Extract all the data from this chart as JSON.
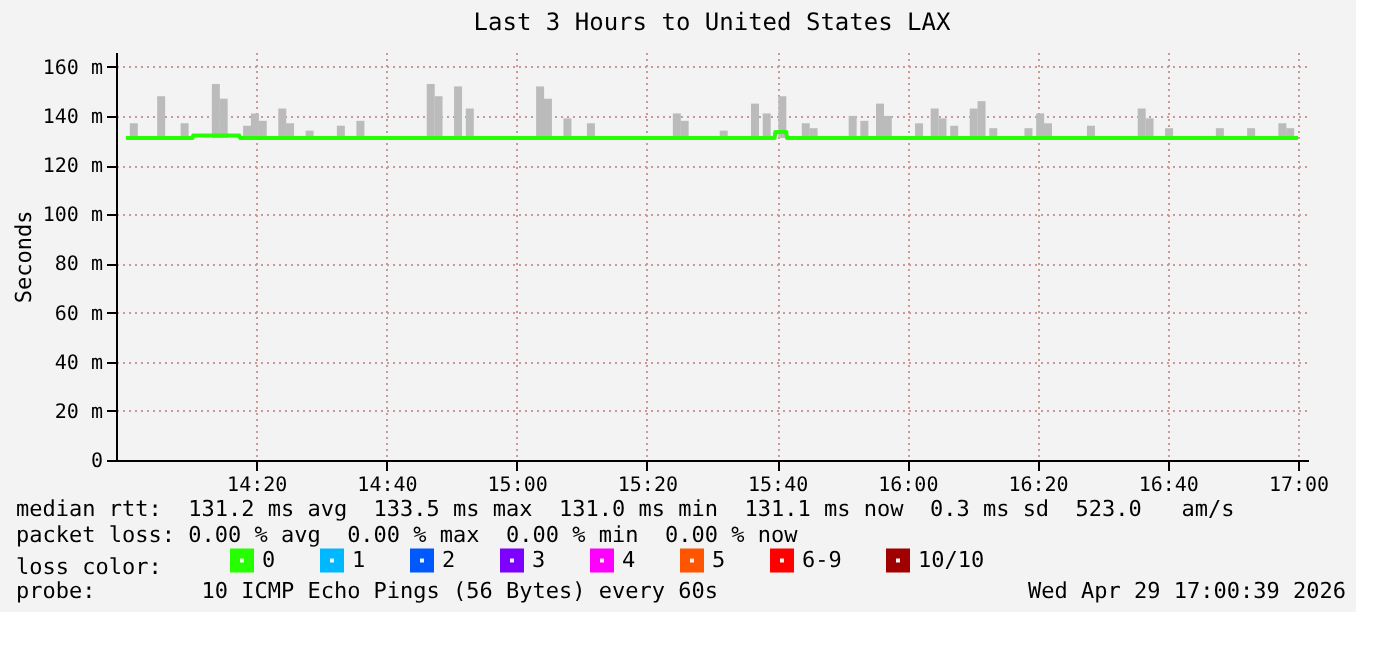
{
  "chart_data": {
    "type": "bar",
    "title": "Last 3 Hours to United States LAX",
    "ylabel": "Seconds",
    "legend_title": "loss color:",
    "xlim": [
      14,
      17
    ],
    "xticks": [
      {
        "value": 14.3333,
        "label": "14:20"
      },
      {
        "value": 14.6667,
        "label": "14:40"
      },
      {
        "value": 15,
        "label": "15:00"
      },
      {
        "value": 15.3333,
        "label": "15:20"
      },
      {
        "value": 15.6667,
        "label": "15:40"
      },
      {
        "value": 16,
        "label": "16:00"
      },
      {
        "value": 16.3333,
        "label": "16:20"
      },
      {
        "value": 16.6667,
        "label": "16:40"
      },
      {
        "value": 17,
        "label": "17:00"
      }
    ],
    "ylim": [
      0,
      166
    ],
    "yticks": [
      0,
      {
        "value": 20,
        "label": "20 m"
      },
      {
        "value": 40,
        "label": "40 m"
      },
      {
        "value": 60,
        "label": "60 m"
      },
      {
        "value": 80,
        "label": "80 m"
      },
      {
        "value": 100,
        "label": "100 m"
      },
      {
        "value": 120,
        "label": "120 m"
      },
      {
        "value": 140,
        "label": "140 m"
      },
      {
        "value": 160,
        "label": "160 m"
      }
    ],
    "grid": true,
    "legend": "bottom",
    "series": [
      {
        "color": "#bbbbbb",
        "x": [
          14.02,
          14.09,
          14.15,
          14.23,
          14.25,
          14.31,
          14.33,
          14.35,
          14.4,
          14.42,
          14.47,
          14.55,
          14.6,
          14.78,
          14.8,
          14.85,
          14.88,
          15.06,
          15.08,
          15.13,
          15.19,
          15.41,
          15.43,
          15.53,
          15.61,
          15.64,
          15.68,
          15.74,
          15.76,
          15.86,
          15.89,
          15.93,
          15.95,
          16.03,
          16.07,
          16.09,
          16.12,
          16.17,
          16.19,
          16.22,
          16.31,
          16.34,
          16.36,
          16.47,
          16.6,
          16.62,
          16.67,
          16.8,
          16.88,
          16.96,
          16.98
        ],
        "base": [
          131,
          131,
          131,
          131,
          131,
          131,
          131,
          131,
          131,
          131,
          131,
          131,
          131,
          131,
          131,
          131,
          131,
          131,
          131,
          131,
          131,
          131,
          131,
          131,
          131,
          131,
          131,
          131,
          131,
          131,
          131,
          131,
          131,
          131,
          131,
          131,
          131,
          131,
          131,
          131,
          131,
          131,
          131,
          131,
          131,
          131,
          131,
          131,
          131,
          131,
          131
        ],
        "values": [
          6,
          17,
          6,
          22,
          16,
          5,
          10,
          7,
          12,
          6,
          3,
          5,
          7,
          22,
          17,
          21,
          12,
          21,
          16,
          8,
          6,
          10,
          7,
          3,
          14,
          10,
          17,
          6,
          4,
          9,
          7,
          14,
          9,
          6,
          12,
          8,
          5,
          12,
          15,
          4,
          4,
          10,
          6,
          5,
          12,
          8,
          4,
          4,
          4,
          6,
          4
        ]
      },
      {
        "type": "line",
        "name": "0",
        "color": "#26ff00",
        "x": [
          14.0,
          14.17,
          14.172,
          14.29,
          14.292,
          15.66,
          15.662,
          15.69,
          15.692,
          17.0
        ],
        "values": [
          131,
          131,
          132,
          132,
          131,
          131,
          133.5,
          133.5,
          131,
          131
        ]
      },
      {
        "type": "line",
        "name": "1",
        "color": "#00b8ff"
      },
      {
        "type": "line",
        "name": "2",
        "color": "#0059ff"
      },
      {
        "type": "line",
        "name": "3",
        "color": "#7e00ff"
      },
      {
        "type": "line",
        "name": "4",
        "color": "#ff00ff"
      },
      {
        "type": "line",
        "name": "5",
        "color": "#ff5500"
      },
      {
        "type": "line",
        "name": "6-9",
        "color": "#ff0000"
      },
      {
        "type": "line",
        "name": "10/10",
        "color": "#a10000"
      }
    ],
    "annotations": [
      "median rtt:  131.2 ms avg  133.5 ms max  131.0 ms min  131.1 ms now  0.3 ms sd  523.0   am/s",
      "packet loss: 0.00 % avg  0.00 % max  0.00 % min  0.00 % now",
      "probe:        10 ICMP Echo Pings (56 Bytes) every 60s",
      "Wed Apr 29 17:00:39 2026"
    ]
  }
}
